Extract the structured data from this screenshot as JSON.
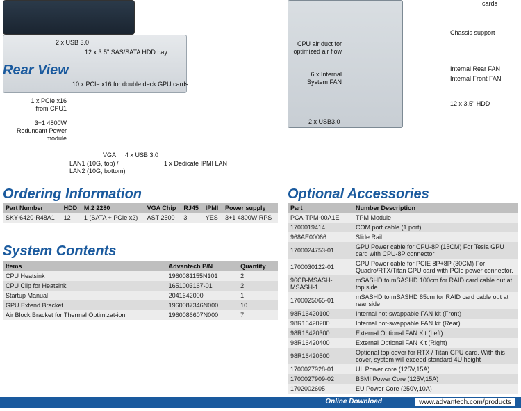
{
  "front_callouts": {
    "usb": "2 x USB 3.0",
    "hddbay": "12 x 3.5\" SAS/SATA HDD bay"
  },
  "rear_view_title": "Rear View",
  "rear_callouts": {
    "pcie_top": "10 x PCIe x16 for double deck GPU cards",
    "pcie_cpu1_l1": "1 x PCIe x16",
    "pcie_cpu1_l2": "from CPU1",
    "psu_l1": "3+1 4800W",
    "psu_l2": "Redundant Power",
    "psu_l3": "module",
    "vga": "VGA",
    "usb": "4 x USB 3.0",
    "lan_l1": "LAN1 (10G, top) /",
    "lan_l2": "LAN2 (10G, bottom)",
    "ipmi": "1 x Dedicate IPMI LAN"
  },
  "top_callouts": {
    "cards": "cards",
    "chassis": "Chassis support",
    "duct_l1": "CPU air duct for",
    "duct_l2": "optimized air flow",
    "sysfan_l1": "6 x Internal",
    "sysfan_l2": "System FAN",
    "rearfan": "Internal Rear FAN",
    "frontfan": "Internal Front FAN",
    "hdd": "12 x 3.5\" HDD",
    "usb": "2 x USB3.0"
  },
  "ordering_title": "Ordering Information",
  "ordering_headers": [
    "Part Number",
    "HDD",
    "M.2 2280",
    "VGA Chip",
    "RJ45",
    "IPMI",
    "Power supply"
  ],
  "ordering_rows": [
    [
      "SKY-6420-R48A1",
      "12",
      "1 (SATA + PCIe x2)",
      "AST 2500",
      "3",
      "YES",
      "3+1 4800W RPS"
    ]
  ],
  "contents_title": "System Contents",
  "contents_headers": [
    "Items",
    "Advantech P/N",
    "Quantity"
  ],
  "contents_rows": [
    [
      "CPU Heatsink",
      "1960081155N101",
      "2"
    ],
    [
      "CPU Clip for Heatsink",
      "1651003167-01",
      "2"
    ],
    [
      "Startup Manual",
      "2041642000",
      "1"
    ],
    [
      "GPU Extend Bracket",
      "1960087346N000",
      "10"
    ],
    [
      "Air Block Bracket for Thermal Optimizat-ion",
      "1960086607N000",
      "7"
    ]
  ],
  "accessories_title": "Optional Accessories",
  "accessories_headers": [
    "Part",
    "Number Description"
  ],
  "accessories_rows": [
    [
      "PCA-TPM-00A1E",
      "TPM Module"
    ],
    [
      "1700019414",
      "COM port cable (1 port)"
    ],
    [
      "968AE00066",
      "Slide Rail"
    ],
    [
      "1700024753-01",
      "GPU Power cable for CPU-8P (15CM) For Tesla GPU card with CPU-8P connector"
    ],
    [
      "1700030122-01",
      "GPU Power cable for PCIE 8P+8P (30CM) For Quadro/RTX/Titan GPU card with PCIe power connector."
    ],
    [
      "96CB-MSASH-MSASH-1",
      "mSASHD to mSASHD 100cm for RAID card cable out at top side"
    ],
    [
      "1700025065-01",
      "mSASHD to mSASHD 85cm for RAID card cable out at rear side"
    ],
    [
      "98R16420100",
      "Internal hot-swappable FAN kit (Front)"
    ],
    [
      "98R16420200",
      "Internal hot-swappable FAN kit (Rear)"
    ],
    [
      "98R16420300",
      "External Optional FAN Kit (Left)"
    ],
    [
      "98R16420400",
      "External Optional FAN Kit (Right)"
    ],
    [
      "98R16420500",
      "Optional top cover for RTX / Titan GPU card. With this cover, system will exceed standard 4U height"
    ],
    [
      "1700027928-01",
      "UL Power core  (125V,15A)"
    ],
    [
      "1700027909-02",
      "BSMI Power Core (125V,15A)"
    ],
    [
      "1702002605",
      "EU Power Core  (250V,10A)"
    ]
  ],
  "footer_label": "Online Download",
  "footer_url": "www.advantech.com/products"
}
